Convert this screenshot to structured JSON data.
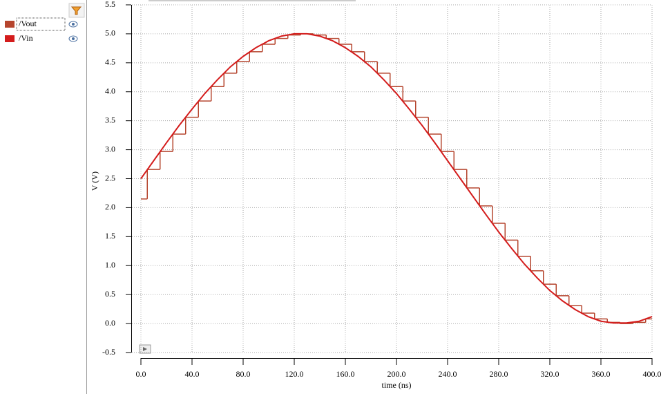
{
  "chart_data": {
    "type": "line",
    "xlabel": "time (ns)",
    "ylabel": "V (V)",
    "xlim": [
      0,
      400
    ],
    "ylim": [
      -0.5,
      5.5
    ],
    "xticks": [
      {
        "value": 0,
        "label": "0.0"
      },
      {
        "value": 40,
        "label": "40.0"
      },
      {
        "value": 80,
        "label": "80.0"
      },
      {
        "value": 120,
        "label": "120.0"
      },
      {
        "value": 160,
        "label": "160.0"
      },
      {
        "value": 200,
        "label": "200.0"
      },
      {
        "value": 240,
        "label": "240.0"
      },
      {
        "value": 280,
        "label": "280.0"
      },
      {
        "value": 320,
        "label": "320.0"
      },
      {
        "value": 360,
        "label": "360.0"
      },
      {
        "value": 400,
        "label": "400.0"
      }
    ],
    "yticks": [
      -0.5,
      {
        "value": 0,
        "label": "0.0"
      },
      0.5,
      {
        "value": 1,
        "label": "1.0"
      },
      1.5,
      {
        "value": 2,
        "label": "2.0"
      },
      2.5,
      {
        "value": 3,
        "label": "3.0"
      },
      3.5,
      {
        "value": 4,
        "label": "4.0"
      },
      4.5,
      {
        "value": 5,
        "label": "5.0"
      },
      5.5
    ],
    "grid": true,
    "series": [
      {
        "name": "/Vout",
        "color": "#b5452e",
        "drawstyle": "steps-post",
        "x": [
          0,
          5,
          15,
          25,
          35,
          45,
          55,
          65,
          75,
          85,
          95,
          105,
          115,
          125,
          135,
          145,
          155,
          165,
          175,
          185,
          195,
          205,
          215,
          225,
          235,
          245,
          255,
          265,
          275,
          285,
          295,
          305,
          315,
          325,
          335,
          345,
          355,
          365,
          375,
          385,
          395
        ],
        "values": [
          2.15,
          2.66,
          2.97,
          3.27,
          3.56,
          3.84,
          4.09,
          4.32,
          4.52,
          4.69,
          4.82,
          4.92,
          4.98,
          5.0,
          4.98,
          4.92,
          4.82,
          4.69,
          4.52,
          4.32,
          4.09,
          3.84,
          3.56,
          3.27,
          2.97,
          2.66,
          2.34,
          2.03,
          1.73,
          1.44,
          1.16,
          0.91,
          0.68,
          0.48,
          0.31,
          0.18,
          0.08,
          0.02,
          0.0,
          0.02,
          0.08
        ]
      },
      {
        "name": "/Vin",
        "color": "#d41c1c",
        "x": [
          0,
          10,
          20,
          30,
          40,
          50,
          60,
          70,
          80,
          90,
          100,
          110,
          120,
          130,
          140,
          150,
          160,
          170,
          180,
          190,
          200,
          210,
          220,
          230,
          240,
          250,
          260,
          270,
          280,
          290,
          300,
          310,
          320,
          330,
          340,
          350,
          360,
          370,
          380,
          390,
          400
        ],
        "values": [
          2.5,
          2.81,
          3.12,
          3.42,
          3.7,
          3.97,
          4.21,
          4.43,
          4.61,
          4.76,
          4.88,
          4.96,
          5.0,
          5.0,
          4.96,
          4.88,
          4.76,
          4.61,
          4.43,
          4.21,
          3.97,
          3.7,
          3.42,
          3.12,
          2.81,
          2.5,
          2.19,
          1.88,
          1.58,
          1.3,
          1.03,
          0.79,
          0.57,
          0.39,
          0.24,
          0.12,
          0.04,
          0.01,
          0.01,
          0.04,
          0.12
        ]
      }
    ]
  }
}
